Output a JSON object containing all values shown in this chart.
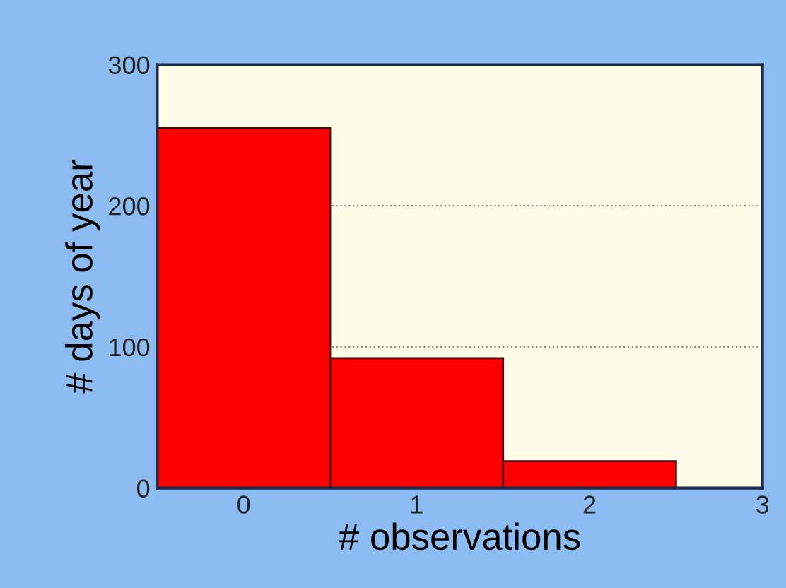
{
  "chart_data": {
    "type": "histogram",
    "xlabel": "# observations",
    "ylabel": "# days of year",
    "bins": [
      -0.5,
      0.5,
      1.5,
      2.5
    ],
    "values": [
      255,
      92,
      19
    ],
    "color": "#ff0000",
    "xlim": [
      -0.5,
      3
    ],
    "xticks": [
      0,
      1,
      2,
      3
    ],
    "ylim": [
      0,
      300
    ],
    "yticks": [
      0,
      100,
      200,
      300
    ],
    "grid": "y"
  }
}
